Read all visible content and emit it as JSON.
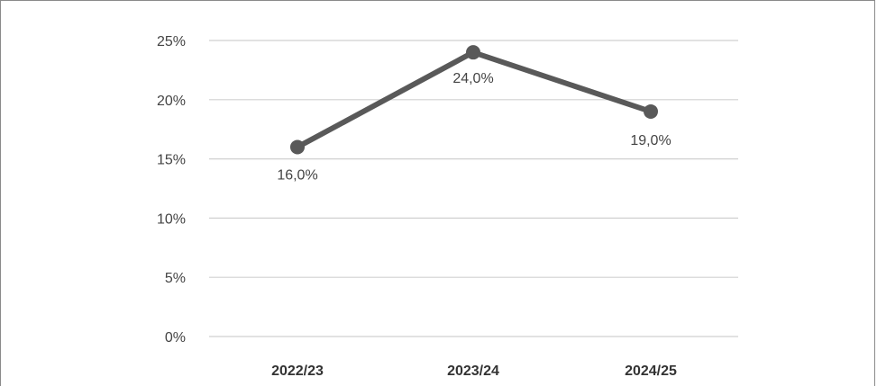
{
  "chart_data": {
    "type": "line",
    "categories": [
      "2022/23",
      "2023/24",
      "2024/25"
    ],
    "series": [
      {
        "values": [
          16.0,
          24.0,
          19.0
        ],
        "data_labels": [
          "16,0%",
          "24,0%",
          "19,0%"
        ],
        "color": "#595959"
      }
    ],
    "y_ticks": [
      "0%",
      "5%",
      "10%",
      "15%",
      "20%",
      "25%"
    ],
    "y_tick_values": [
      0,
      5,
      10,
      15,
      20,
      25
    ],
    "ylim": [
      0,
      25
    ],
    "grid": true,
    "legend": "none",
    "gridline_color": "#d0d0d0"
  }
}
